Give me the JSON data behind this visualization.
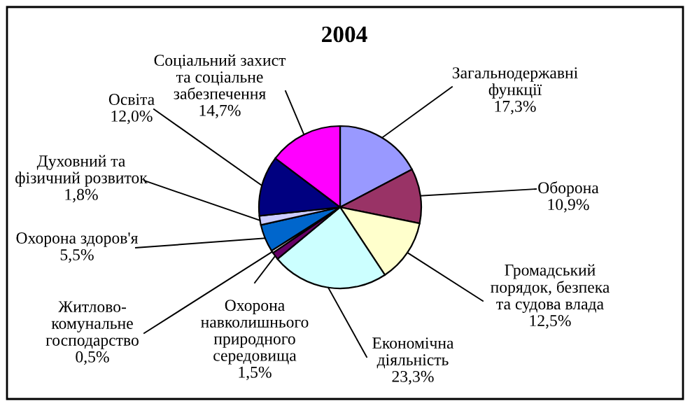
{
  "chart_data": {
    "type": "pie",
    "title": "2004",
    "categories": [
      "Загальнодержавні\nфункції",
      "Оборона",
      "Громадський\nпорядок, безпека\nта судова влада",
      "Економічна\nдіяльність",
      "Охорона\nнавколишнього\nприродного\nсередовища",
      "Житлово-\nкомунальне\nгосподарство",
      "Охорона здоров'я",
      "Духовний та\nфізичний розвиток",
      "Освіта",
      "Соціальний захист\nта соціальне\nзабезпечення"
    ],
    "values": [
      17.3,
      10.9,
      12.5,
      23.3,
      1.5,
      0.5,
      5.5,
      1.8,
      12.0,
      14.7
    ],
    "value_labels": [
      "17,3%",
      "10,9%",
      "12,5%",
      "23,3%",
      "1,5%",
      "0,5%",
      "5,5%",
      "1,8%",
      "12,0%",
      "14,7%"
    ],
    "colors": [
      "#9999ff",
      "#993366",
      "#ffffcc",
      "#ccffff",
      "#660066",
      "#ffffff",
      "#0066cc",
      "#ccccff",
      "#000080",
      "#ff00ff"
    ]
  }
}
